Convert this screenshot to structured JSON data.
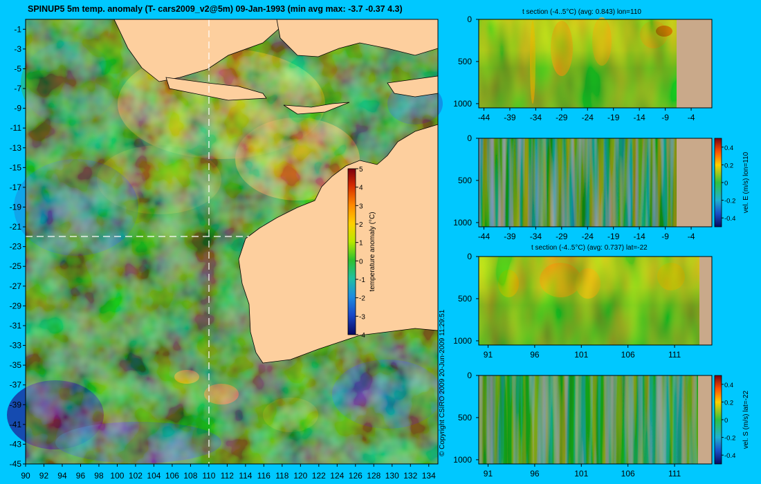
{
  "header": {
    "title": "SPINUP5 5m temp. anomaly (T- cars2009_v2@5m) 09-Jan-1993 (min avg max: -3.7 -0.37 4.3)"
  },
  "footer": {
    "copyright": "© Copyright CSIRO 2009   20-Jun-2009 11:29:51"
  },
  "colors": {
    "background": "#00c8ff",
    "land": "#fdcf9e",
    "section_land": "#c9a98a",
    "crosshair": "#ffffff"
  },
  "chart_data": [
    {
      "type": "heatmap",
      "id": "map",
      "title": "SPINUP5 5m temp. anomaly (T- cars2009_v2@5m) 09-Jan-1993 (min avg max: -3.7 -0.37 4.3)",
      "x_ticks": [
        "90",
        "92",
        "94",
        "96",
        "98",
        "100",
        "102",
        "104",
        "106",
        "108",
        "110",
        "112",
        "114",
        "116",
        "118",
        "120",
        "122",
        "124",
        "126",
        "128",
        "130",
        "132",
        "134"
      ],
      "y_ticks": [
        "-1",
        "-3",
        "-5",
        "-7",
        "-9",
        "-11",
        "-13",
        "-15",
        "-17",
        "-19",
        "-21",
        "-23",
        "-25",
        "-27",
        "-29",
        "-31",
        "-33",
        "-35",
        "-37",
        "-39",
        "-41",
        "-43",
        "-45"
      ],
      "xlim": [
        90,
        135
      ],
      "ylim": [
        -45,
        0
      ],
      "crosshair": {
        "lon": 110,
        "lat": -22
      },
      "colorbar": {
        "label": "temperature anomaly (°C)",
        "ticks": [
          "5",
          "4",
          "3",
          "2",
          "1",
          "0",
          "-1",
          "-2",
          "-3",
          "-4"
        ],
        "range": [
          -4,
          5
        ]
      }
    },
    {
      "type": "heatmap",
      "id": "t-section-lon",
      "title": "t section (-4..5°C) (avg: 0.843) lon=110",
      "x_ticks": [
        "-44",
        "-39",
        "-34",
        "-29",
        "-24",
        "-19",
        "-14",
        "-9",
        "-4"
      ],
      "y_ticks": [
        "0",
        "500",
        "1000"
      ],
      "xlim": [
        -45,
        0
      ],
      "ylim": [
        1050,
        0
      ]
    },
    {
      "type": "heatmap",
      "id": "velE-section-lon",
      "x_ticks": [
        "-44",
        "-39",
        "-34",
        "-29",
        "-24",
        "-19",
        "-14",
        "-9",
        "-4"
      ],
      "y_ticks": [
        "0",
        "500",
        "1000"
      ],
      "xlim": [
        -45,
        0
      ],
      "ylim": [
        1050,
        0
      ],
      "colorbar": {
        "label": "vel. E (m/s) lon=110",
        "ticks": [
          "0.4",
          "0.2",
          "0",
          "-0.2",
          "-0.4"
        ],
        "range": [
          -0.5,
          0.5
        ]
      }
    },
    {
      "type": "heatmap",
      "id": "t-section-lat",
      "title": "t section (-4..5°C) (avg: 0.737) lat=-22",
      "x_ticks": [
        "91",
        "96",
        "101",
        "106",
        "111"
      ],
      "y_ticks": [
        "0",
        "500",
        "1000"
      ],
      "xlim": [
        90,
        115
      ],
      "ylim": [
        1050,
        0
      ]
    },
    {
      "type": "heatmap",
      "id": "velS-section-lat",
      "x_ticks": [
        "91",
        "96",
        "101",
        "106",
        "111"
      ],
      "y_ticks": [
        "0",
        "500",
        "1000"
      ],
      "xlim": [
        90,
        115
      ],
      "ylim": [
        1050,
        0
      ],
      "colorbar": {
        "label": "vel. S (m/s) lat=-22",
        "ticks": [
          "0.4",
          "0.2",
          "0",
          "-0.2",
          "-0.4"
        ],
        "range": [
          -0.5,
          0.5
        ]
      }
    }
  ]
}
